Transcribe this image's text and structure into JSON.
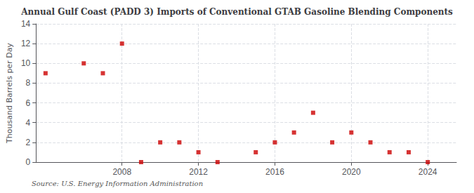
{
  "chart_data": {
    "type": "scatter",
    "title": "Annual Gulf Coast (PADD 3) Imports of Conventional GTAB Gasoline Blending Components",
    "ylabel": "Thousand Barrels per Day",
    "annotations": [
      "Source: U.S. Energy Information Administration"
    ],
    "x": [
      2004,
      2006,
      2007,
      2008,
      2009,
      2010,
      2011,
      2012,
      2013,
      2015,
      2016,
      2017,
      2018,
      2019,
      2020,
      2021,
      2022,
      2023,
      2024
    ],
    "values": [
      9,
      10,
      9,
      12,
      0,
      2,
      2,
      1,
      0,
      1,
      2,
      3,
      5,
      2,
      3,
      2,
      1,
      1,
      0
    ],
    "color": "#cc0000",
    "marker": "square",
    "xlim": [
      2003.5,
      2025.5
    ],
    "ylim": [
      0,
      14
    ],
    "xticks": [
      2008,
      2012,
      2016,
      2020,
      2024
    ],
    "yticks": [
      0,
      2,
      4,
      6,
      8,
      10,
      12,
      14
    ],
    "grid": true
  }
}
